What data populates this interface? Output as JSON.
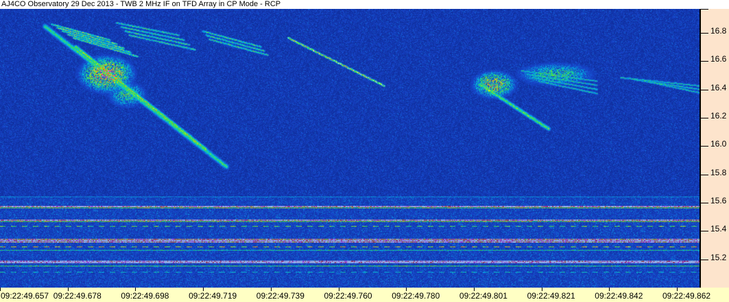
{
  "chart_data": {
    "type": "heatmap",
    "title": "AJ4CO Observatory 29 Dec 2013 - TWB 2 MHz IF on TFD Array in CP Mode - RCP",
    "x_tick_labels": [
      "09:22:49.657",
      "09:22:49.678",
      "09:22:49.698",
      "09:22:49.719",
      "09:22:49.739",
      "09:22:49.760",
      "09:22:49.780",
      "09:22:49.801",
      "09:22:49.821",
      "09:22:49.842",
      "09:22:49.862"
    ],
    "y_tick_labels": [
      "16.8",
      "16.6",
      "16.4",
      "16.2",
      "16.0",
      "15.8",
      "15.6",
      "15.4",
      "15.2"
    ],
    "y_ticks": [
      16.8,
      16.6,
      16.4,
      16.2,
      16.0,
      15.8,
      15.6,
      15.4,
      15.2
    ],
    "ylim": [
      15.0,
      16.97
    ],
    "y_axis_position": "right",
    "grid": false,
    "colormap": [
      "#000060",
      "#1030a0",
      "#1848d0",
      "#00c0e0",
      "#40e040",
      "#f0f000",
      "#ff3030",
      "#ff40ff",
      "#ffffff"
    ]
  },
  "colors": {
    "y_axis_bg": "#fde4cc",
    "x_axis_bg": "#ffffc4",
    "title_bg": "#ffffff"
  }
}
